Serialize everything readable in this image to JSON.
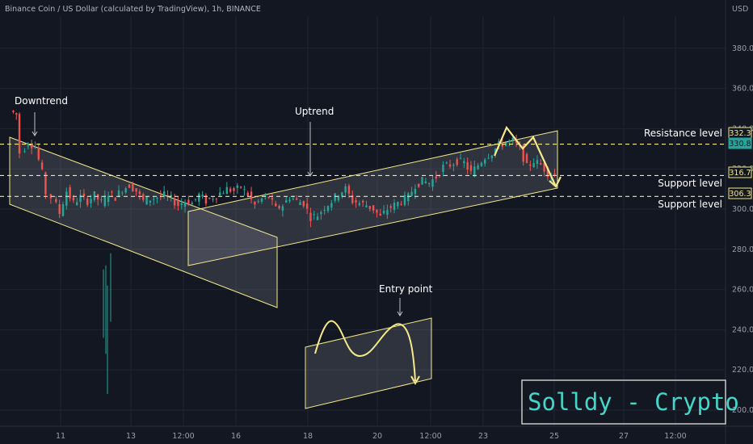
{
  "header": {
    "symbol_title": "Binance Coin / US Dollar (calculated by TradingView), 1h, BINANCE",
    "currency": "USD"
  },
  "watermark": "Solldy - Crypto for U",
  "chart_data": {
    "type": "candlestick",
    "interval": "1h",
    "x_ticks": [
      "11",
      "13",
      "12:00",
      "16",
      "18",
      "20",
      "12:00",
      "23",
      "25",
      "27",
      "12:00"
    ],
    "y_ticks": [
      200.0,
      220.0,
      240.0,
      260.0,
      280.0,
      300.0,
      320.0,
      340.0,
      360.0,
      380.0
    ],
    "ylim": [
      195,
      395
    ],
    "y_axis_side": "right",
    "grid": true,
    "price_tags": [
      {
        "value": "332.3",
        "color": "#f5e98a",
        "text_color": "#f5e98a",
        "filled": false
      },
      {
        "value": "330.8",
        "color": "#26a69a",
        "text_color": "#131722",
        "filled": true
      },
      {
        "value": "316.7",
        "color": "#f5e98a",
        "text_color": "#f5e98a",
        "filled": false
      },
      {
        "value": "306.3",
        "color": "#f5e98a",
        "text_color": "#f5e98a",
        "filled": false
      }
    ],
    "levels": [
      {
        "label": "Resistance level",
        "value": 332.3
      },
      {
        "label": "Support level",
        "value": 316.7
      },
      {
        "label": "Support level",
        "value": 306.3
      }
    ],
    "annotations": [
      "Downtrend",
      "Uptrend",
      "Entry point"
    ],
    "candle_path": [
      [
        348,
        349
      ],
      [
        355,
        347
      ],
      [
        361,
        328
      ],
      [
        369,
        333
      ],
      [
        377,
        331
      ],
      [
        385,
        318
      ],
      [
        391,
        308
      ],
      [
        397,
        306
      ],
      [
        405,
        298
      ],
      [
        413,
        309
      ],
      [
        421,
        303
      ],
      [
        429,
        306
      ],
      [
        437,
        304
      ],
      [
        445,
        307
      ],
      [
        453,
        303
      ],
      [
        461,
        308
      ],
      [
        469,
        306
      ],
      [
        477,
        310
      ],
      [
        485,
        312
      ],
      [
        493,
        309
      ],
      [
        501,
        304
      ],
      [
        509,
        305
      ],
      [
        517,
        306
      ],
      [
        525,
        307
      ],
      [
        533,
        305
      ],
      [
        541,
        302
      ],
      [
        549,
        304
      ],
      [
        557,
        303
      ],
      [
        565,
        307
      ],
      [
        573,
        304
      ],
      [
        581,
        306
      ],
      [
        589,
        308
      ],
      [
        597,
        310
      ],
      [
        605,
        309
      ],
      [
        613,
        311
      ],
      [
        621,
        307
      ],
      [
        629,
        302
      ],
      [
        637,
        305
      ],
      [
        645,
        306
      ],
      [
        653,
        300
      ],
      [
        661,
        302
      ],
      [
        669,
        306
      ],
      [
        677,
        304
      ],
      [
        685,
        303
      ],
      [
        693,
        296
      ],
      [
        701,
        297
      ],
      [
        709,
        301
      ],
      [
        717,
        304
      ],
      [
        725,
        308
      ],
      [
        733,
        310
      ],
      [
        741,
        304
      ],
      [
        749,
        303
      ],
      [
        757,
        302
      ],
      [
        765,
        300
      ],
      [
        773,
        296
      ],
      [
        781,
        300
      ],
      [
        789,
        302
      ],
      [
        797,
        304
      ],
      [
        805,
        306
      ],
      [
        813,
        312
      ],
      [
        821,
        314
      ],
      [
        829,
        313
      ],
      [
        837,
        316
      ],
      [
        845,
        321
      ],
      [
        853,
        322
      ],
      [
        861,
        324
      ],
      [
        869,
        323
      ],
      [
        877,
        318
      ],
      [
        885,
        322
      ],
      [
        893,
        326
      ],
      [
        901,
        328
      ],
      [
        909,
        332
      ],
      [
        917,
        333
      ],
      [
        925,
        334
      ],
      [
        933,
        330
      ],
      [
        941,
        321
      ],
      [
        949,
        324
      ],
      [
        957,
        322
      ],
      [
        965,
        318
      ],
      [
        973,
        317
      ],
      [
        981,
        322
      ],
      [
        989,
        325
      ],
      [
        997,
        330
      ],
      [
        1005,
        329
      ],
      [
        1013,
        326
      ],
      [
        1021,
        330
      ],
      [
        1029,
        327
      ],
      [
        1037,
        326
      ],
      [
        1045,
        321
      ],
      [
        1053,
        318
      ],
      [
        1061,
        315
      ],
      [
        1069,
        316
      ],
      [
        1077,
        322
      ],
      [
        1085,
        326
      ],
      [
        1093,
        328
      ],
      [
        1101,
        327
      ],
      [
        1109,
        330
      ],
      [
        1117,
        331
      ],
      [
        1125,
        332
      ],
      [
        1133,
        334
      ],
      [
        1141,
        332
      ],
      [
        1149,
        334
      ],
      [
        1157,
        336
      ],
      [
        1165,
        335
      ],
      [
        1173,
        331
      ],
      [
        1181,
        333
      ],
      [
        1189,
        334
      ],
      [
        1197,
        336
      ],
      [
        1205,
        337
      ],
      [
        1213,
        338
      ],
      [
        1221,
        340
      ],
      [
        1229,
        342
      ],
      [
        1237,
        343
      ],
      [
        1245,
        346
      ],
      [
        1253,
        348
      ],
      [
        1261,
        347
      ],
      [
        1269,
        349
      ]
    ],
    "note": "candle_path pairs are [hour index, approx. price] samples read off the plotted series"
  }
}
